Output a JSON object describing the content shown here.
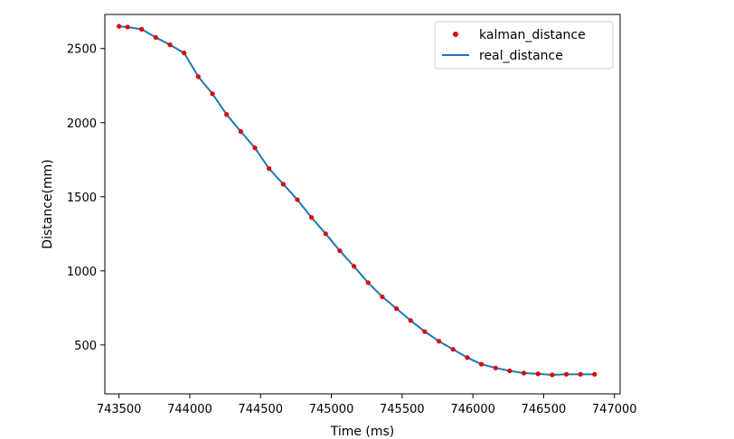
{
  "chart_data": {
    "type": "line",
    "title": "",
    "xlabel": "Time (ms)",
    "ylabel": "Distance(mm)",
    "xlim": [
      743400,
      747040
    ],
    "ylim": [
      170,
      2730
    ],
    "x_ticks": [
      743500,
      744000,
      744500,
      745000,
      745500,
      746000,
      746500,
      747000
    ],
    "y_ticks": [
      500,
      1000,
      1500,
      2000,
      2500
    ],
    "legend_position": "top-right",
    "grid": false,
    "series": [
      {
        "name": "kalman_distance",
        "style": "points",
        "color": "#e00000",
        "x": [
          743500,
          743560,
          743660,
          743760,
          743860,
          743960,
          744060,
          744160,
          744260,
          744360,
          744460,
          744560,
          744660,
          744760,
          744860,
          744960,
          745060,
          745160,
          745260,
          745360,
          745460,
          745560,
          745660,
          745760,
          745860,
          745960,
          746060,
          746160,
          746260,
          746360,
          746460,
          746560,
          746660,
          746760,
          746860
        ],
        "y": [
          2650,
          2645,
          2630,
          2575,
          2525,
          2470,
          2310,
          2195,
          2055,
          1940,
          1830,
          1690,
          1585,
          1480,
          1360,
          1250,
          1135,
          1030,
          920,
          825,
          745,
          665,
          590,
          525,
          470,
          415,
          370,
          345,
          325,
          310,
          305,
          298,
          302,
          302,
          302
        ]
      },
      {
        "name": "real_distance",
        "style": "line",
        "color": "#1f77b4",
        "x": [
          743500,
          743560,
          743660,
          743760,
          743860,
          743960,
          744060,
          744160,
          744260,
          744360,
          744460,
          744560,
          744660,
          744760,
          744860,
          744960,
          745060,
          745160,
          745260,
          745360,
          745460,
          745560,
          745660,
          745760,
          745860,
          745960,
          746060,
          746160,
          746260,
          746360,
          746460,
          746560,
          746660,
          746760,
          746860
        ],
        "y": [
          2650,
          2645,
          2630,
          2575,
          2525,
          2470,
          2310,
          2195,
          2055,
          1940,
          1830,
          1690,
          1585,
          1480,
          1360,
          1250,
          1135,
          1030,
          920,
          825,
          745,
          665,
          590,
          525,
          470,
          415,
          370,
          345,
          325,
          310,
          305,
          298,
          302,
          302,
          302
        ]
      }
    ]
  }
}
